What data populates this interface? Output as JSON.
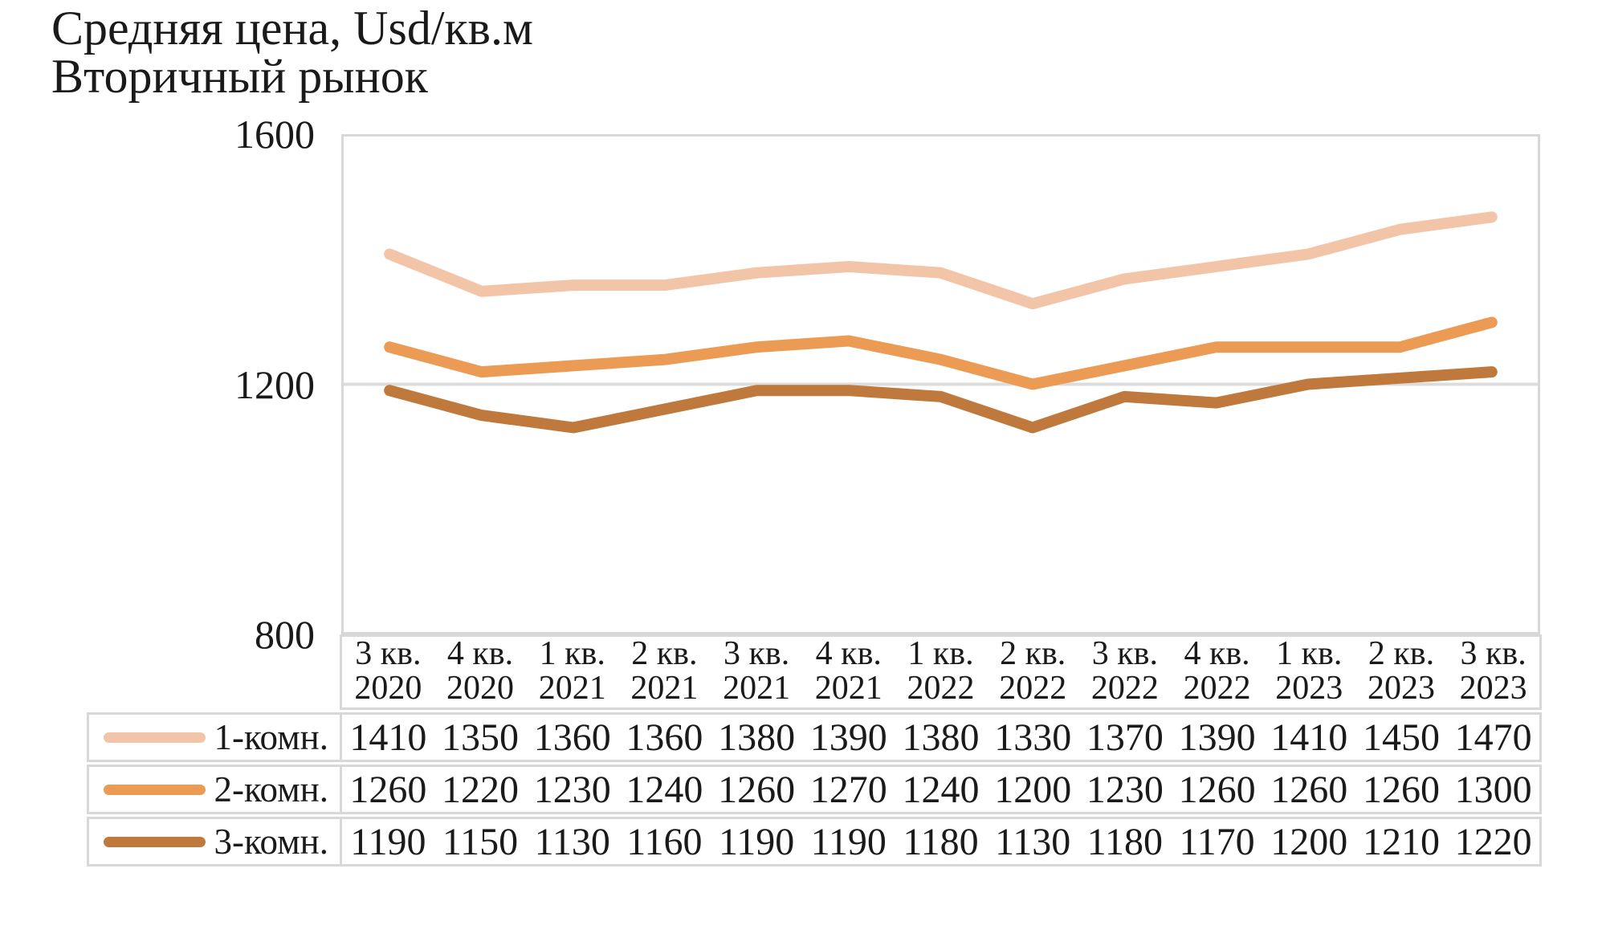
{
  "header": {
    "title": "Средняя цена, Usd/кв.м",
    "subtitle": "Вторичный рынок"
  },
  "chart_data": {
    "type": "line",
    "title": "Средняя цена, Usd/кв.м",
    "subtitle": "Вторичный рынок",
    "categories": [
      "3 кв. 2020",
      "4 кв. 2020",
      "1 кв. 2021",
      "2 кв. 2021",
      "3 кв. 2021",
      "4 кв. 2021",
      "1 кв. 2022",
      "2 кв. 2022",
      "3 кв. 2022",
      "4 кв. 2022",
      "1 кв. 2023",
      "2 кв. 2023",
      "3 кв. 2023"
    ],
    "series": [
      {
        "name": "1-комн.",
        "color": "#F3C5A8",
        "values": [
          1410,
          1350,
          1360,
          1360,
          1380,
          1390,
          1380,
          1330,
          1370,
          1390,
          1410,
          1450,
          1470
        ]
      },
      {
        "name": "2-комн.",
        "color": "#EC9B55",
        "values": [
          1260,
          1220,
          1230,
          1240,
          1260,
          1270,
          1240,
          1200,
          1230,
          1260,
          1260,
          1260,
          1300
        ]
      },
      {
        "name": "3-комн.",
        "color": "#C0793C",
        "values": [
          1190,
          1150,
          1130,
          1160,
          1190,
          1190,
          1180,
          1130,
          1180,
          1170,
          1200,
          1210,
          1220
        ]
      }
    ],
    "ylim": [
      800,
      1600
    ],
    "yticks": [
      800,
      1200,
      1600
    ],
    "xlabel": "",
    "ylabel": "",
    "grid": "horizontal",
    "gridline_color": "#dcdcdc",
    "legend_position": "table-left"
  }
}
